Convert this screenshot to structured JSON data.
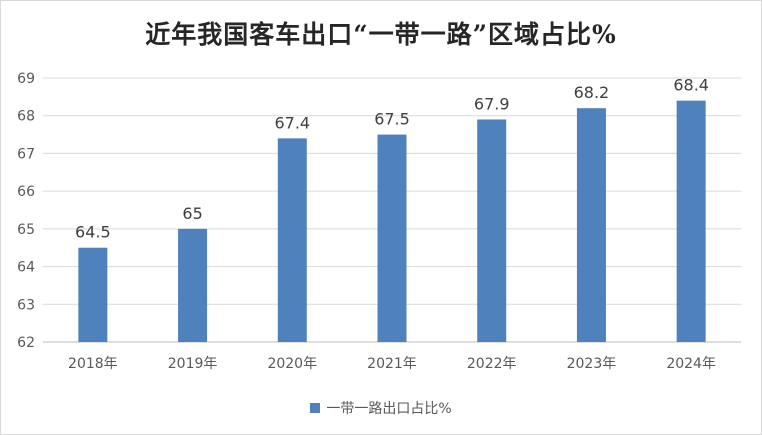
{
  "chart_data": {
    "type": "bar",
    "title": "近年我国客车出口“一带一路”区域占比%",
    "categories": [
      "2018年",
      "2019年",
      "2020年",
      "2021年",
      "2022年",
      "2023年",
      "2024年"
    ],
    "series": [
      {
        "name": "一带一路出口占比%",
        "values": [
          64.5,
          65,
          67.4,
          67.5,
          67.9,
          68.2,
          68.4
        ],
        "color": "#4f81bd"
      }
    ],
    "data_labels": [
      "64.5",
      "65",
      "67.4",
      "67.5",
      "67.9",
      "68.2",
      "68.4"
    ],
    "ylim": [
      62,
      69
    ],
    "yticks": [
      "62",
      "63",
      "64",
      "65",
      "66",
      "67",
      "68",
      "69"
    ],
    "grid": true,
    "legend": "bottom",
    "xlabel": "",
    "ylabel": ""
  }
}
